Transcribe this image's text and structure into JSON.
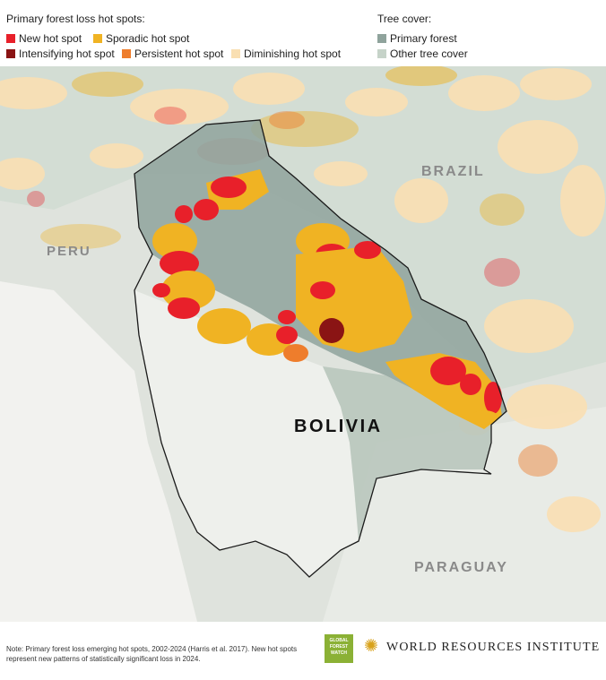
{
  "legend": {
    "hotspots_title": "Primary forest loss hot spots:",
    "hotspots": [
      {
        "label": "New hot spot",
        "color": "#e8202a"
      },
      {
        "label": "Sporadic hot spot",
        "color": "#f0b323"
      },
      {
        "label": "Intensifying hot spot",
        "color": "#8a1414"
      },
      {
        "label": "Persistent hot spot",
        "color": "#ee7d2c"
      },
      {
        "label": "Diminishing hot spot",
        "color": "#f9dfb2"
      }
    ],
    "cover_title": "Tree cover:",
    "cover": [
      {
        "label": "Primary forest",
        "color": "#8fa39c"
      },
      {
        "label": "Other tree cover",
        "color": "#c6d3c9"
      }
    ]
  },
  "map": {
    "labels": {
      "peru": "PERU",
      "brazil": "BRAZIL",
      "bolivia": "BOLIVIA",
      "paraguay": "PARAGUAY"
    }
  },
  "footer": {
    "note": "Note: Primary forest loss emerging hot spots, 2002-2024 (Harris et al. 2017). New hot spots represent new patterns of statistically significant loss in 2024.",
    "gfw_logo": "GLOBAL FOREST WATCH",
    "wri_name": "WORLD RESOURCES INSTITUTE"
  }
}
